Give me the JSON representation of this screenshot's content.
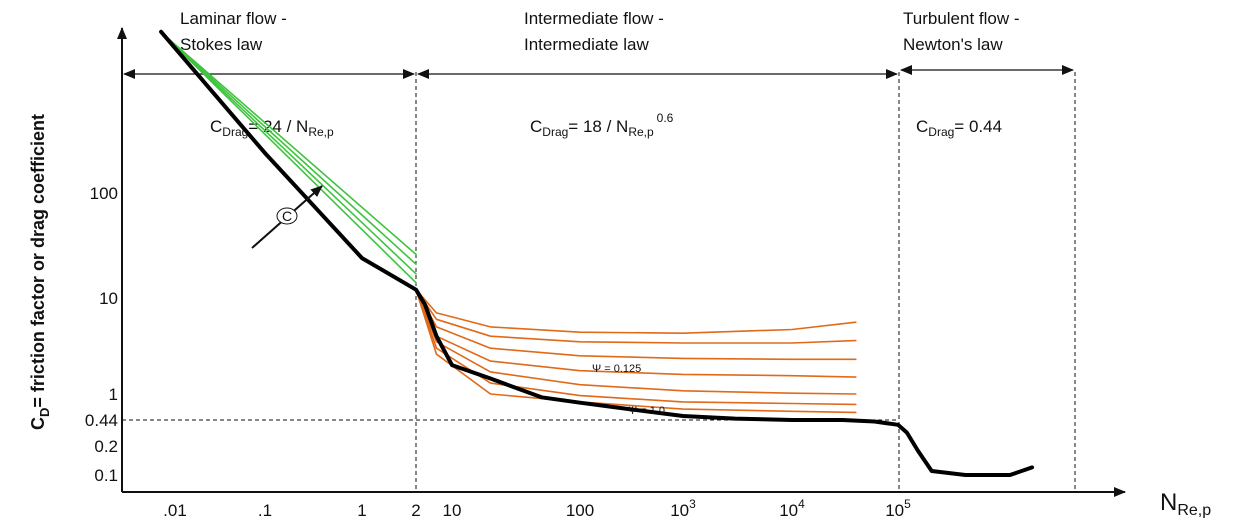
{
  "chart_data": {
    "type": "line",
    "title": "",
    "ylabel": {
      "main": "C",
      "sub": "D",
      "rest": "= friction factor or drag coefficient"
    },
    "xlabel": {
      "main": "N",
      "sub": "Re,p"
    },
    "x_scale": "log",
    "y_scale": "log",
    "x_ticks": [
      {
        "value": 0.01,
        "label": ".01"
      },
      {
        "value": 0.1,
        "label": ".1"
      },
      {
        "value": 1,
        "label": "1"
      },
      {
        "value": 2,
        "label": "2"
      },
      {
        "value": 10,
        "label": "10"
      },
      {
        "value": 100,
        "label": "100"
      },
      {
        "value": 1000,
        "base": "10",
        "exp": "3"
      },
      {
        "value": 10000,
        "base": "10",
        "exp": "4"
      },
      {
        "value": 100000,
        "base": "10",
        "exp": "5"
      }
    ],
    "y_ticks": [
      {
        "value": 100,
        "label": "100"
      },
      {
        "value": 10,
        "label": "10"
      },
      {
        "value": 1,
        "label": "1"
      },
      {
        "value": 0.44,
        "label": "0.44"
      },
      {
        "value": 0.2,
        "label": "0.2"
      },
      {
        "value": 0.1,
        "label": "0.1"
      }
    ],
    "regions": [
      {
        "title_line1": "Laminar flow -",
        "title_line2": "Stokes law",
        "x_start": 0.005,
        "x_end": 2,
        "formula": {
          "prefix": "C",
          "sub": "Drag",
          "mid": "= 24 / N",
          "sub2": "Re,p",
          "sup": ""
        }
      },
      {
        "title_line1": "Intermediate flow -",
        "title_line2": "Intermediate law",
        "x_start": 2,
        "x_end": 100000,
        "formula": {
          "prefix": "C",
          "sub": "Drag",
          "mid": "= 18 / N",
          "sub2": "Re,p",
          "sup": "0.6"
        }
      },
      {
        "title_line1": "Turbulent flow -",
        "title_line2": "Newton's law",
        "x_start": 100000,
        "x_end": 3000000,
        "formula": {
          "prefix": "C",
          "sub": "Drag",
          "mid": "= 0.44",
          "sub2": "",
          "sup": ""
        }
      }
    ],
    "reference_line": {
      "y": 0.44,
      "style": "dashed"
    },
    "annotations": {
      "psi_top": "Ψ = 0.125",
      "psi_bottom": "Ψ = 1.0",
      "c_arrow": "C"
    },
    "colors": {
      "main": "#000000",
      "laminar_family": "#3ec43e",
      "intermediate_family": "#e06a1a"
    },
    "series": [
      {
        "role": "sphere",
        "color": "#000000",
        "x": [
          0.007,
          0.01,
          0.03,
          0.1,
          0.3,
          1,
          2,
          3,
          5,
          10,
          20,
          50,
          100,
          300,
          1000,
          3000,
          10000,
          30000,
          60000,
          100000,
          120000,
          150000,
          200000,
          400000,
          700000,
          1000000,
          1500000
        ],
        "y": [
          3430,
          2400,
          800,
          240,
          80,
          24,
          12.0,
          8.5,
          4.0,
          2.0,
          1.45,
          0.9,
          0.76,
          0.62,
          0.5,
          0.46,
          0.44,
          0.44,
          0.42,
          0.38,
          0.3,
          0.18,
          0.11,
          0.1,
          0.1,
          0.1,
          0.12
        ]
      },
      {
        "role": "laminar",
        "color": "#3ec43e",
        "x": [
          0.007,
          2
        ],
        "y": [
          3400,
          14.0
        ]
      },
      {
        "role": "laminar",
        "color": "#3ec43e",
        "x": [
          0.007,
          2
        ],
        "y": [
          3400,
          17.0
        ]
      },
      {
        "role": "laminar",
        "color": "#3ec43e",
        "x": [
          0.007,
          2
        ],
        "y": [
          3400,
          21.0
        ]
      },
      {
        "role": "laminar",
        "color": "#3ec43e",
        "x": [
          0.007,
          2
        ],
        "y": [
          3400,
          26.0
        ]
      },
      {
        "role": "intermediate",
        "color": "#e06a1a",
        "x": [
          2,
          5,
          20,
          100,
          1000,
          10000,
          40000
        ],
        "y": [
          12,
          7,
          5,
          4.4,
          4.3,
          4.7,
          5.6
        ]
      },
      {
        "role": "intermediate",
        "color": "#e06a1a",
        "x": [
          2,
          5,
          20,
          100,
          1000,
          10000,
          40000
        ],
        "y": [
          12,
          6,
          4,
          3.5,
          3.4,
          3.4,
          3.6
        ]
      },
      {
        "role": "intermediate",
        "color": "#e06a1a",
        "x": [
          2,
          5,
          20,
          100,
          1000,
          10000,
          40000
        ],
        "y": [
          12,
          5,
          3,
          2.5,
          2.35,
          2.3,
          2.3
        ]
      },
      {
        "role": "intermediate",
        "color": "#e06a1a",
        "x": [
          2,
          5,
          20,
          100,
          1000,
          10000,
          40000
        ],
        "y": [
          12,
          4,
          2.2,
          1.75,
          1.6,
          1.55,
          1.5
        ]
      },
      {
        "role": "intermediate",
        "color": "#e06a1a",
        "x": [
          2,
          5,
          20,
          100,
          1000,
          10000,
          40000
        ],
        "y": [
          12,
          3.5,
          1.7,
          1.25,
          1.08,
          1.02,
          1.0
        ]
      },
      {
        "role": "intermediate",
        "color": "#e06a1a",
        "x": [
          2,
          5,
          20,
          100,
          1000,
          10000,
          40000
        ],
        "y": [
          12,
          3,
          1.3,
          0.95,
          0.78,
          0.74,
          0.72
        ]
      },
      {
        "role": "intermediate",
        "color": "#e06a1a",
        "x": [
          2,
          5,
          20,
          100,
          1000,
          10000,
          40000
        ],
        "y": [
          12,
          2.6,
          1.0,
          0.78,
          0.62,
          0.58,
          0.56
        ]
      }
    ]
  }
}
